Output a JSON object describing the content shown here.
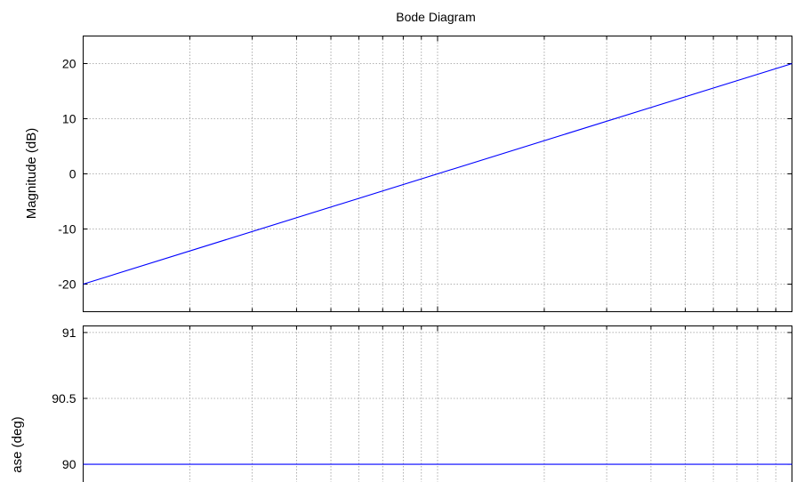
{
  "chart_data": [
    {
      "type": "line",
      "title": "Bode Diagram",
      "ylabel": "Magnitude (dB)",
      "xscale": "log",
      "xlim_decades": [
        0,
        2
      ],
      "ylim": [
        -25,
        25
      ],
      "yticks": [
        -20,
        -10,
        0,
        10,
        20
      ],
      "grid": true,
      "series": [
        {
          "x_decade": [
            0,
            2
          ],
          "values": [
            -20,
            20
          ]
        }
      ],
      "color": "#0000ff"
    },
    {
      "type": "line",
      "ylabel": "ase (deg)",
      "xscale": "log",
      "xlim_decades": [
        0,
        2
      ],
      "ylim": [
        89.7,
        91.05
      ],
      "yticks": [
        90,
        90.5,
        91
      ],
      "ytick_labels": [
        "90",
        "90.5",
        "91"
      ],
      "grid": true,
      "series": [
        {
          "x_decade": [
            0,
            2
          ],
          "values": [
            90,
            90
          ]
        }
      ],
      "color": "#0000ff"
    }
  ]
}
